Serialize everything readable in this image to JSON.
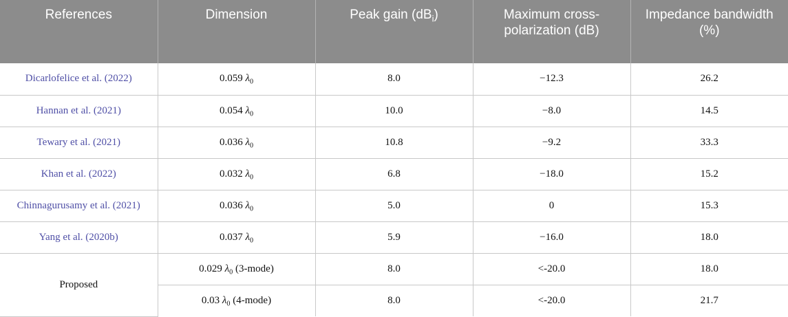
{
  "headers": {
    "references": "References",
    "dimension": "Dimension",
    "peak_gain_prefix": "Peak gain (dB",
    "peak_gain_sub": "i",
    "peak_gain_suffix": ")",
    "cross_pol": "Maximum cross-polarization (dB)",
    "bandwidth": "Impedance bandwidth (%)"
  },
  "lambda_symbol": "λ",
  "lambda_sub": "0",
  "rows": [
    {
      "ref": "Dicarlofelice et al. (2022)",
      "dim": "0.059",
      "dim_suffix": "",
      "gain": "8.0",
      "xpol": "−12.3",
      "bw": "26.2"
    },
    {
      "ref": "Hannan et al. (2021)",
      "dim": "0.054",
      "dim_suffix": "",
      "gain": "10.0",
      "xpol": "−8.0",
      "bw": "14.5"
    },
    {
      "ref": "Tewary et al. (2021)",
      "dim": "0.036",
      "dim_suffix": "",
      "gain": "10.8",
      "xpol": "−9.2",
      "bw": "33.3"
    },
    {
      "ref": "Khan et al. (2022)",
      "dim": "0.032",
      "dim_suffix": "",
      "gain": "6.8",
      "xpol": "−18.0",
      "bw": "15.2"
    },
    {
      "ref": "Chinnagurusamy et al. (2021)",
      "dim": "0.036",
      "dim_suffix": "",
      "gain": "5.0",
      "xpol": "0",
      "bw": "15.3"
    },
    {
      "ref": "Yang et al. (2020b)",
      "dim": "0.037",
      "dim_suffix": "",
      "gain": "5.9",
      "xpol": "−16.0",
      "bw": "18.0"
    }
  ],
  "proposed": {
    "ref": "Proposed",
    "rows": [
      {
        "dim": "0.029",
        "dim_suffix": " (3-mode)",
        "gain": "8.0",
        "xpol": "<-20.0",
        "bw": "18.0"
      },
      {
        "dim": "0.03",
        "dim_suffix": " (4-mode)",
        "gain": "8.0",
        "xpol": "<-20.0",
        "bw": "21.7"
      }
    ]
  }
}
